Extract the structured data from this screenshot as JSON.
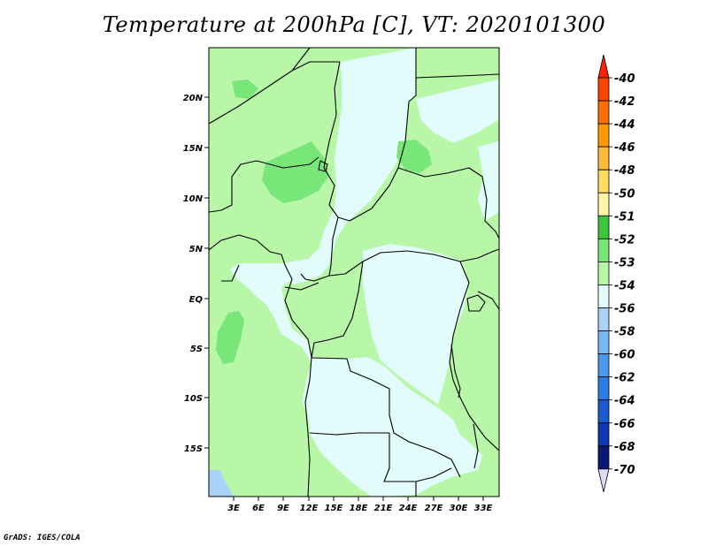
{
  "title": "Temperature at 200hPa [C], VT: 2020101300",
  "footer": "GrADS: IGES/COLA",
  "map": {
    "lat_labels": [
      "20N",
      "15N",
      "10N",
      "5N",
      "EQ",
      "5S",
      "10S",
      "15S"
    ],
    "lon_labels": [
      "3E",
      "6E",
      "9E",
      "12E",
      "15E",
      "18E",
      "21E",
      "24E",
      "27E",
      "30E",
      "33E"
    ]
  },
  "colorbar": {
    "labels": [
      "-40",
      "-42",
      "-44",
      "-46",
      "-48",
      "-50",
      "-51",
      "-52",
      "-53",
      "-54",
      "-56",
      "-58",
      "-60",
      "-62",
      "-64",
      "-66",
      "-68",
      "-70"
    ],
    "colors": [
      "#ff2200",
      "#ff4400",
      "#ff7000",
      "#ff9a00",
      "#ffbb3a",
      "#ffdd60",
      "#fff5a8",
      "#3cc63c",
      "#78e678",
      "#b8f6a8",
      "#e2fcfc",
      "#a8d2f8",
      "#78b6f4",
      "#4c98ec",
      "#2c7ce2",
      "#1a5cd0",
      "#0e38b0",
      "#0a1872",
      "#dcdcf8"
    ]
  }
}
